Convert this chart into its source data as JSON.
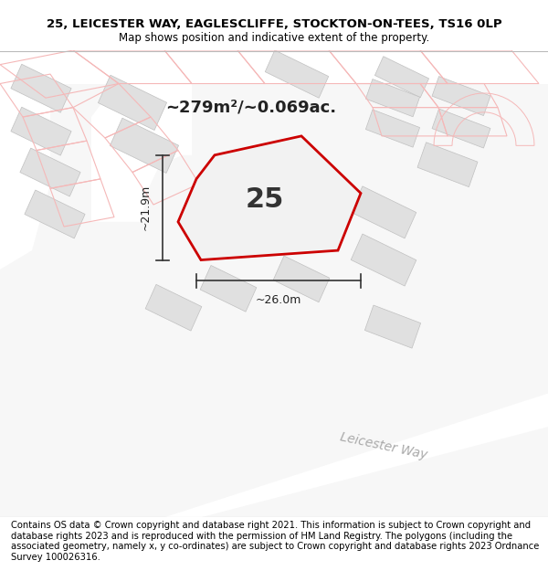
{
  "title": "25, LEICESTER WAY, EAGLESCLIFFE, STOCKTON-ON-TEES, TS16 0LP",
  "subtitle": "Map shows position and indicative extent of the property.",
  "area_text": "~279m²/~0.069ac.",
  "plot_number": "25",
  "dim_width": "~26.0m",
  "dim_height": "~21.9m",
  "footer": "Contains OS data © Crown copyright and database right 2021. This information is subject to Crown copyright and database rights 2023 and is reproduced with the permission of HM Land Registry. The polygons (including the associated geometry, namely x, y co-ordinates) are subject to Crown copyright and database rights 2023 Ordnance Survey 100026316.",
  "map_bg": "#f7f7f7",
  "building_color": "#e0e0e0",
  "building_edge": "#c0c0c0",
  "plot_outline_color": "#f5b8b8",
  "plot_fill": "#f0f0f0",
  "plot_edge": "#cc0000",
  "road_label_color": "#aaaaaa",
  "dim_line_color": "#333333",
  "text_color": "#222222",
  "road_label": "Leicester Way",
  "title_fontsize": 9.5,
  "subtitle_fontsize": 8.5,
  "footer_fontsize": 7.2,
  "area_fontsize": 13,
  "plot_num_fontsize": 22,
  "dim_fontsize": 9
}
